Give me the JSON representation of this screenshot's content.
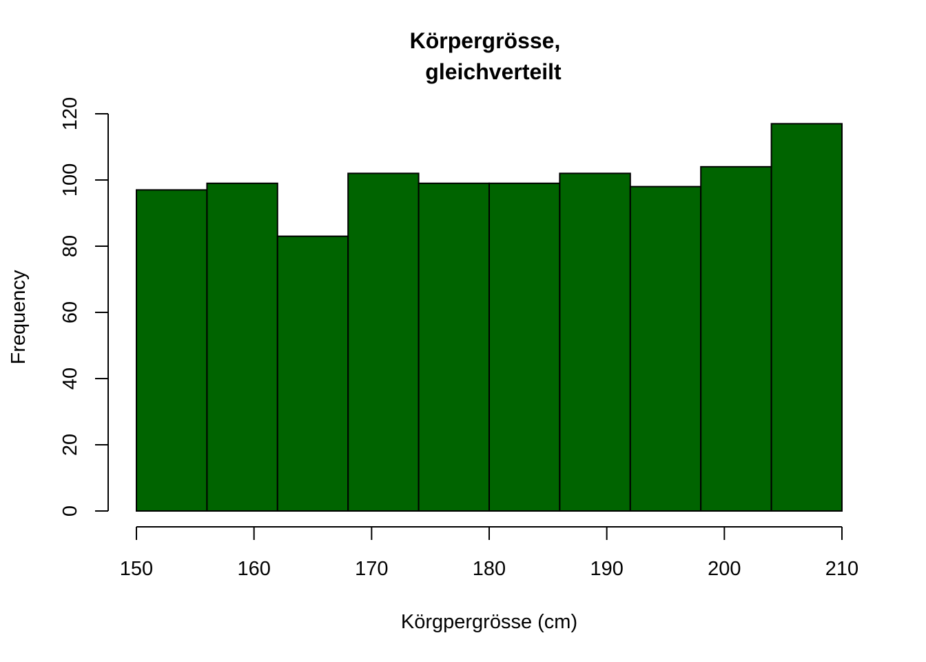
{
  "chart_data": {
    "type": "bar",
    "subtype": "histogram",
    "title": [
      "Körpergrösse,",
      "gleichverteilt"
    ],
    "xlabel": "Körgpergrösse (cm)",
    "ylabel": "Frequency",
    "bin_edges": [
      150,
      156,
      162,
      168,
      174,
      180,
      186,
      192,
      198,
      204,
      210
    ],
    "values": [
      97,
      99,
      83,
      102,
      99,
      99,
      102,
      98,
      104,
      117
    ],
    "xlim": [
      150,
      210
    ],
    "ylim": [
      0,
      120
    ],
    "x_ticks": [
      150,
      160,
      170,
      180,
      190,
      200,
      210
    ],
    "y_ticks": [
      0,
      20,
      40,
      60,
      80,
      100,
      120
    ],
    "bar_color": "#006400",
    "border_color": "#000000",
    "grid": false,
    "legend": "none"
  }
}
